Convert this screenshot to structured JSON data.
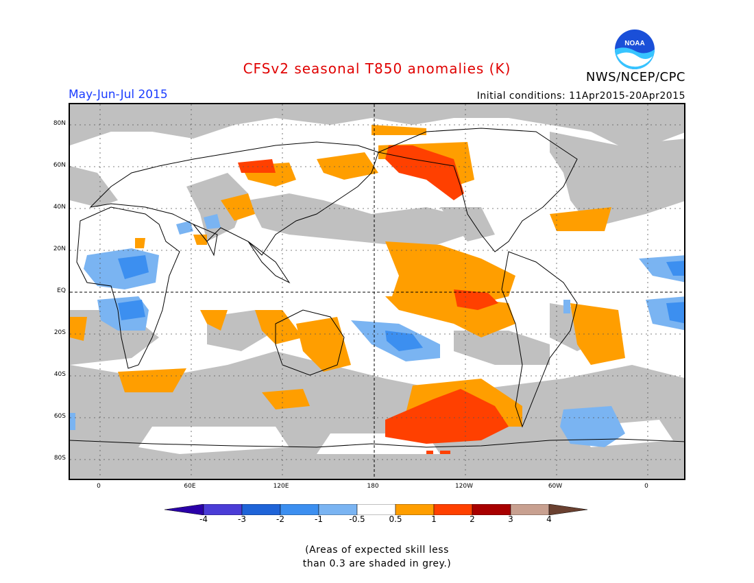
{
  "title": "CFSv2 seasonal T850 anomalies (K)",
  "agency": "NWS/NCEP/CPC",
  "logo_text": "NOAA",
  "season": "May-Jun-Jul 2015",
  "initial_conditions": "Initial conditions: 11Apr2015-20Apr2015",
  "lat_labels": [
    "80N",
    "60N",
    "40N",
    "20N",
    "EQ",
    "20S",
    "40S",
    "60S",
    "80S"
  ],
  "lon_labels": [
    "0",
    "60E",
    "120E",
    "180",
    "120W",
    "60W",
    "0"
  ],
  "colorbar": {
    "labels": [
      "-4",
      "-3",
      "-2",
      "-1",
      "-0.5",
      "0.5",
      "1",
      "2",
      "3",
      "4"
    ],
    "colors": [
      "#2a00a8",
      "#4a3cd6",
      "#1f64d8",
      "#3c8ff0",
      "#7ab4f2",
      "#ffffff",
      "#ff9e00",
      "#ff4000",
      "#a80000",
      "#c8a090",
      "#6a4030"
    ]
  },
  "note_lines": [
    "(Areas of expected skill less",
    "than 0.3 are shaded in grey.)"
  ],
  "anomaly_features": [
    {
      "region": "Alaska / NE Pacific",
      "category": "1 to 2"
    },
    {
      "region": "Eastern equatorial Pacific",
      "category": "1 to 2"
    },
    {
      "region": "South Pacific near Antarctica",
      "category": "1 to 2"
    },
    {
      "region": "Central-east tropical Pacific",
      "category": "0.5 to 1"
    },
    {
      "region": "South-central Pacific",
      "category": "-1 to -2"
    },
    {
      "region": "West Africa / Sahel",
      "category": "-0.5 to -1"
    },
    {
      "region": "South Atlantic near Antarctica",
      "category": "-0.5 to -1"
    }
  ]
}
